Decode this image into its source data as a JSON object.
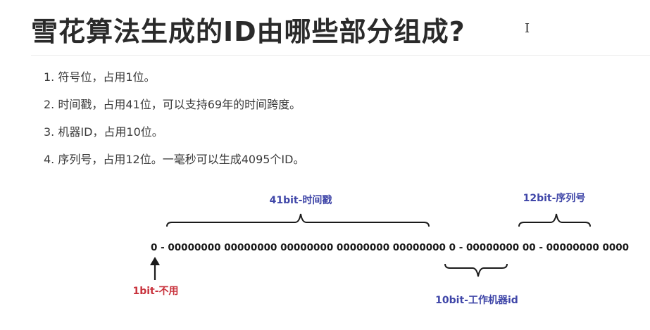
{
  "title": "雪花算法生成的ID由哪些部分组成?",
  "cursor_glyph": "I",
  "items": [
    "1. 符号位，占用1位。",
    "2. 时间戳，占用41位，可以支持69年的时间跨度。",
    "3. 机器ID，占用10位。",
    "4. 序列号，占用12位。一毫秒可以生成4095个ID。"
  ],
  "diagram": {
    "bit_string": "0 - 00000000 00000000 00000000 00000000 00000000 0 - 00000000 00 - 00000000 0000",
    "label_timestamp": "41bit-时间戳",
    "label_sequence": "12bit-序列号",
    "label_sign": "1bit-不用",
    "label_worker": "10bit-工作机器id",
    "colors": {
      "blue_label": "#3f46a8",
      "red_label": "#c8323c"
    }
  }
}
